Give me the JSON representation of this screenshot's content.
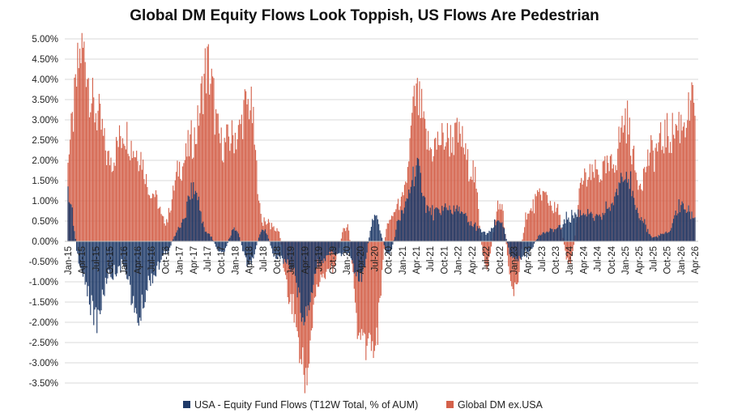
{
  "colors": {
    "usa": "#1f3a68",
    "global": "#d4614a",
    "grid": "#d9d9d9",
    "zero_line": "#bfbfbf"
  },
  "chart_data": {
    "type": "bar",
    "title": "Global DM Equity Flows Look Toppish, US Flows Are Pedestrian",
    "xlabel": "",
    "ylabel": "",
    "ylim": [
      -3.5,
      5.0
    ],
    "y_ticks": [
      "5.00%",
      "4.50%",
      "4.00%",
      "3.50%",
      "3.00%",
      "2.50%",
      "2.00%",
      "1.50%",
      "1.00%",
      "0.50%",
      "0.00%",
      "-0.50%",
      "-1.00%",
      "-1.50%",
      "-2.00%",
      "-2.50%",
      "-3.00%",
      "-3.50%"
    ],
    "x_ticks": [
      "Jan-15",
      "Apr-15",
      "Jul-15",
      "Oct-15",
      "Jan-16",
      "Apr-16",
      "Jul-16",
      "Oct-16",
      "Jan-17",
      "Apr-17",
      "Jul-17",
      "Oct-17",
      "Jan-18",
      "Apr-18",
      "Jul-18",
      "Oct-18",
      "Jan-19",
      "Apr-19",
      "Jul-19",
      "Oct-19",
      "Jan-20",
      "Apr-20",
      "Jul-20",
      "Oct-20",
      "Jan-21",
      "Apr-21",
      "Jul-21",
      "Oct-21",
      "Jan-22",
      "Apr-22",
      "Jul-22",
      "Oct-22",
      "Jan-23",
      "Apr-23",
      "Jul-23",
      "Oct-23",
      "Jan-24",
      "Apr-24",
      "Jul-24",
      "Oct-24",
      "Jan-25",
      "Apr-25",
      "Jul-25",
      "Oct-25",
      "Jan-26",
      "Apr-26"
    ],
    "grid": true,
    "legend_position": "bottom",
    "series": [
      {
        "name": "USA - Equity Fund Flows (T12W Total, % of AUM)",
        "x": [
          "Jan-15",
          "Apr-15",
          "Jul-15",
          "Oct-15",
          "Jan-16",
          "Apr-16",
          "Jul-16",
          "Oct-16",
          "Jan-17",
          "Apr-17",
          "Jul-17",
          "Oct-17",
          "Jan-18",
          "Apr-18",
          "Jul-18",
          "Oct-18",
          "Jan-19",
          "Apr-19",
          "Jul-19",
          "Oct-19",
          "Jan-20",
          "Apr-20",
          "Jul-20",
          "Oct-20",
          "Jan-21",
          "Apr-21",
          "Jul-21",
          "Oct-21",
          "Jan-22",
          "Apr-22",
          "Jul-22",
          "Oct-22",
          "Jan-23",
          "Apr-23",
          "Jul-23",
          "Oct-23",
          "Jan-24",
          "Apr-24",
          "Jul-24",
          "Oct-24",
          "Jan-25",
          "Apr-25",
          "Jul-25",
          "Oct-25",
          "Jan-26",
          "Apr-26"
        ],
        "values": [
          1.1,
          -0.8,
          -1.9,
          -0.8,
          -0.6,
          -1.9,
          -0.9,
          -0.3,
          0.3,
          1.3,
          0.2,
          -0.3,
          0.3,
          -0.6,
          0.3,
          -0.4,
          -0.6,
          -1.8,
          -0.5,
          -0.3,
          -0.3,
          -0.9,
          0.6,
          -0.3,
          0.7,
          1.8,
          0.7,
          0.8,
          0.8,
          0.4,
          0.2,
          0.5,
          -0.5,
          -0.3,
          0.2,
          0.3,
          0.6,
          0.7,
          0.6,
          0.9,
          1.8,
          0.6,
          0.1,
          0.2,
          0.9,
          0.6
        ]
      },
      {
        "name": "Global DM ex.USA",
        "x": [
          "Jan-15",
          "Apr-15",
          "Jul-15",
          "Oct-15",
          "Jan-16",
          "Apr-16",
          "Jul-16",
          "Oct-16",
          "Jan-17",
          "Apr-17",
          "Jul-17",
          "Oct-17",
          "Jan-18",
          "Apr-18",
          "Jul-18",
          "Oct-18",
          "Jan-19",
          "Apr-19",
          "Jul-19",
          "Oct-19",
          "Jan-20",
          "Apr-20",
          "Jul-20",
          "Oct-20",
          "Jan-21",
          "Apr-21",
          "Jul-21",
          "Oct-21",
          "Jan-22",
          "Apr-22",
          "Jul-22",
          "Oct-22",
          "Jan-23",
          "Apr-23",
          "Jul-23",
          "Oct-23",
          "Jan-24",
          "Apr-24",
          "Jul-24",
          "Oct-24",
          "Jan-25",
          "Apr-25",
          "Jul-25",
          "Oct-25",
          "Jan-26",
          "Apr-26"
        ],
        "values": [
          2.3,
          4.7,
          3.2,
          2.0,
          2.7,
          2.2,
          1.2,
          0.5,
          1.8,
          2.5,
          4.3,
          2.4,
          2.6,
          3.4,
          0.5,
          0.3,
          -1.5,
          -3.3,
          -1.0,
          -0.6,
          0.4,
          -2.5,
          -2.5,
          0.5,
          1.0,
          3.5,
          2.3,
          2.5,
          2.6,
          1.8,
          -0.6,
          0.9,
          -1.3,
          0.7,
          1.2,
          0.8,
          -0.5,
          1.5,
          1.7,
          1.8,
          3.0,
          1.5,
          2.2,
          2.6,
          2.9,
          3.4
        ]
      }
    ]
  }
}
